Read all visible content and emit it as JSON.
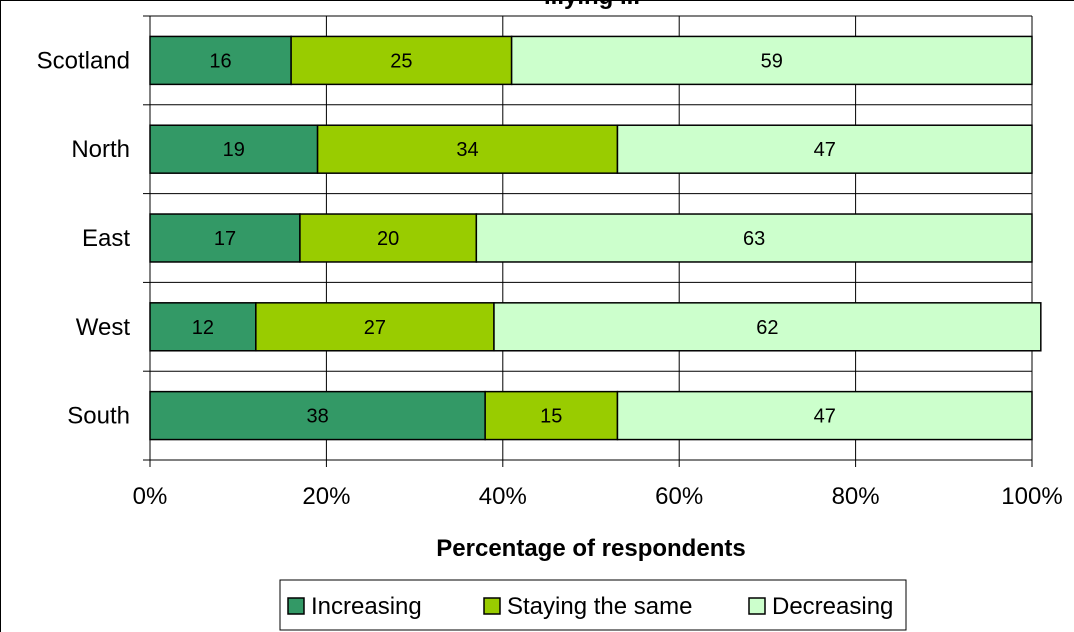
{
  "chart_data": {
    "type": "bar",
    "orientation": "horizontal",
    "stacked": true,
    "percent": true,
    "title": "...ying ...",
    "xlabel": "Percentage of respondents",
    "ylabel": "",
    "categories": [
      "Scotland",
      "North",
      "East",
      "West",
      "South"
    ],
    "series": [
      {
        "name": "Increasing",
        "color": "#339966",
        "values": [
          16,
          19,
          17,
          12,
          38
        ]
      },
      {
        "name": "Staying the same",
        "color": "#99cc00",
        "values": [
          25,
          34,
          20,
          27,
          15
        ]
      },
      {
        "name": "Decreasing",
        "color": "#ccffcc",
        "values": [
          59,
          47,
          63,
          62,
          47
        ]
      }
    ],
    "xlim": [
      0,
      100
    ],
    "xticks": [
      "0%",
      "20%",
      "40%",
      "60%",
      "80%",
      "100%"
    ],
    "grid": true,
    "legend": "bottom"
  }
}
